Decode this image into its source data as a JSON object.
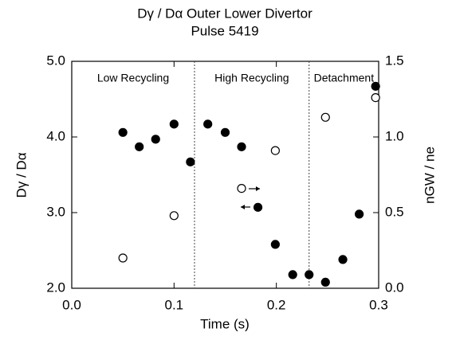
{
  "chart_data": {
    "type": "scatter",
    "title": "Dγ / Dα Outer Lower Divertor",
    "subtitle": "Pulse 5419",
    "xlabel": "Time (s)",
    "ylabel": "Dγ / Dα",
    "y2label": "nGW / ne",
    "xlim": [
      0,
      0.3
    ],
    "ylim": [
      2,
      5
    ],
    "y2lim": [
      0,
      1.5
    ],
    "xticks": [
      {
        "value": 0,
        "label": "0.0"
      },
      0.1,
      0.2,
      0.3
    ],
    "yticks": [
      {
        "value": 2,
        "label": "2.0"
      },
      {
        "value": 3,
        "label": "3.0"
      },
      {
        "value": 4,
        "label": "4.0"
      },
      {
        "value": 5,
        "label": "5.0"
      }
    ],
    "y2ticks": [
      {
        "value": 0,
        "label": "0.0"
      },
      0.5,
      {
        "value": 1,
        "label": "1.0"
      },
      1.5
    ],
    "region_boundaries": [
      0.12,
      0.232
    ],
    "region_labels": [
      "Low Recycling",
      "High Recycling",
      "Detachment"
    ],
    "series": [
      {
        "color": "#000000",
        "fill": "#000000",
        "x": [
          0.05,
          0.066,
          0.082,
          0.1,
          0.116,
          0.133,
          0.15,
          0.166,
          0.182,
          0.199,
          0.216,
          0.232,
          0.248,
          0.265,
          0.281,
          0.297
        ],
        "values": [
          4.06,
          3.87,
          3.97,
          4.17,
          3.67,
          4.17,
          4.06,
          3.87,
          3.07,
          2.58,
          2.18,
          2.18,
          2.08,
          2.38,
          2.98,
          4.67
        ]
      },
      {
        "color": "#000000",
        "fill": "#ffffff",
        "axis": "y2",
        "x": [
          0.05,
          0.1,
          0.166,
          0.199,
          0.248,
          0.297
        ],
        "values": [
          0.2,
          0.48,
          0.66,
          0.91,
          1.13,
          1.26
        ]
      }
    ]
  }
}
